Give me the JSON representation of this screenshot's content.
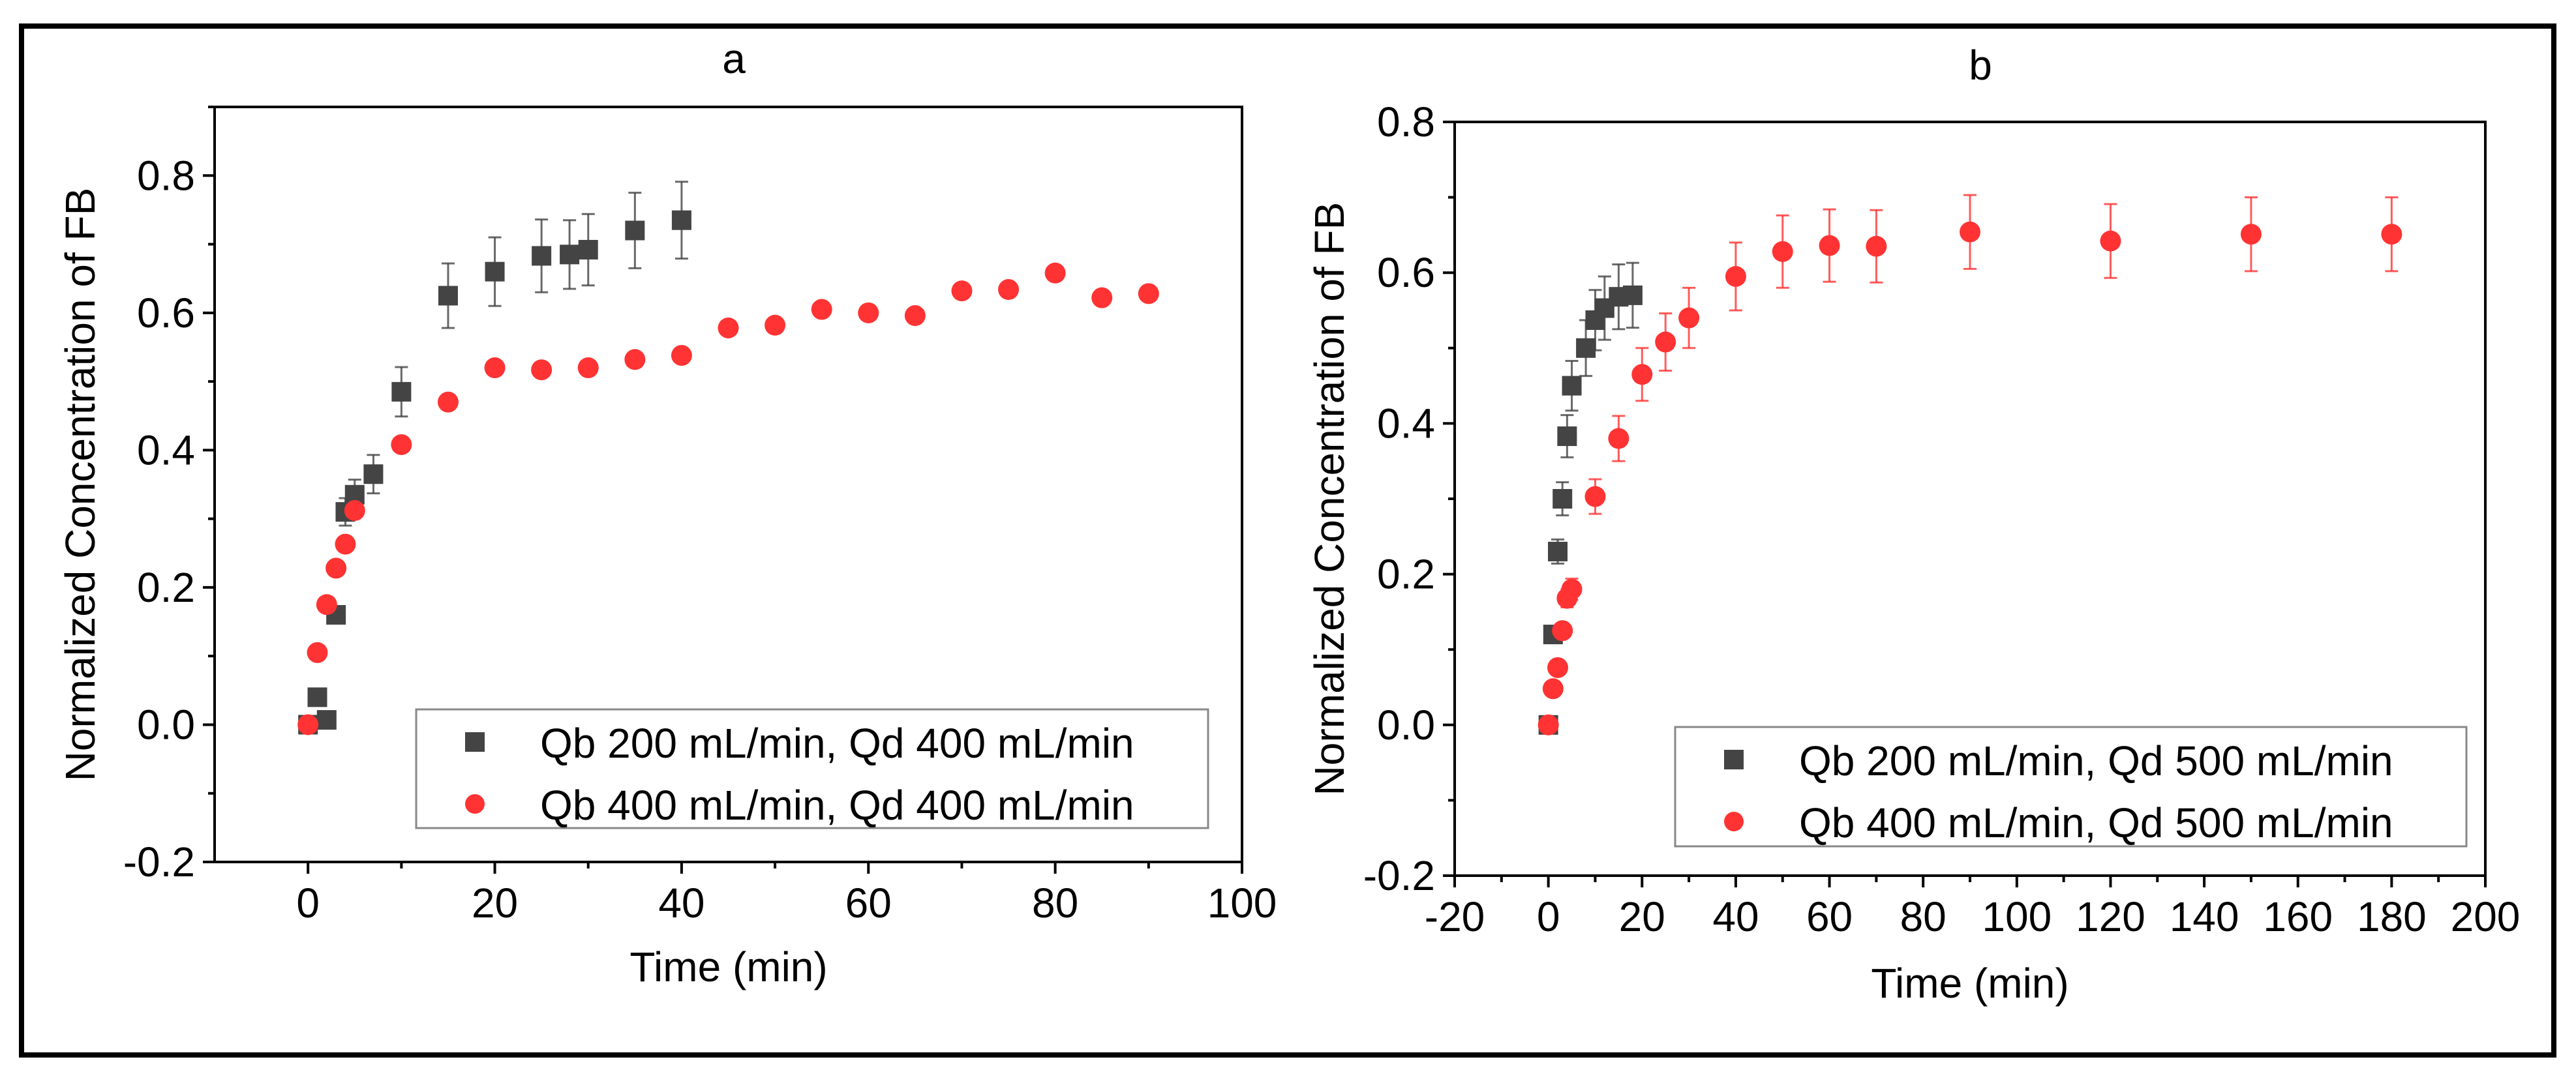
{
  "chart_data": [
    {
      "type": "scatter",
      "title": "a",
      "xlabel": "Time (min)",
      "ylabel": "Normalized Concentration of FB",
      "xlim": [
        -10,
        100
      ],
      "ylim": [
        -0.2,
        0.9
      ],
      "xticks": [
        0,
        20,
        40,
        60,
        80,
        100
      ],
      "xtick_labels": [
        "0",
        "20",
        "40",
        "60",
        "80",
        "100"
      ],
      "yticks": [
        -0.2,
        0.0,
        0.2,
        0.4,
        0.6,
        0.8
      ],
      "ytick_labels": [
        "-0.2",
        "0.0",
        "0.2",
        "0.4",
        "0.6",
        "0.8"
      ],
      "grid": false,
      "legend_position": "bottom-right",
      "series": [
        {
          "name": "Qb 200 mL/min, Qd 400 mL/min",
          "marker": "square",
          "color": "#444444",
          "x": [
            0,
            1,
            2,
            3,
            4,
            5,
            7,
            10,
            15,
            20,
            25,
            28,
            30,
            35,
            40
          ],
          "y": [
            0.0,
            0.04,
            0.007,
            0.16,
            0.31,
            0.335,
            0.365,
            0.485,
            0.625,
            0.66,
            0.683,
            0.685,
            0.692,
            0.72,
            0.735
          ],
          "err": [
            0.005,
            0.008,
            0.006,
            0.01,
            0.02,
            0.022,
            0.028,
            0.036,
            0.047,
            0.05,
            0.053,
            0.05,
            0.052,
            0.055,
            0.056
          ]
        },
        {
          "name": "Qb 400 mL/min, Qd 400 mL/min",
          "marker": "circle",
          "color": "#ff3333",
          "x": [
            0,
            1,
            2,
            3,
            4,
            5,
            10,
            15,
            20,
            25,
            30,
            35,
            40,
            45,
            50,
            55,
            60,
            65,
            70,
            75,
            80,
            85,
            90
          ],
          "y": [
            0.0,
            0.105,
            0.175,
            0.228,
            0.263,
            0.312,
            0.408,
            0.47,
            0.52,
            0.517,
            0.52,
            0.532,
            0.538,
            0.578,
            0.582,
            0.605,
            0.6,
            0.596,
            0.632,
            0.634,
            0.658,
            0.622,
            0.628
          ],
          "err": []
        }
      ]
    },
    {
      "type": "scatter",
      "title": "b",
      "xlabel": "Time (min)",
      "ylabel": "Normalized Concentration of FB",
      "xlim": [
        -20,
        200
      ],
      "ylim": [
        -0.2,
        0.8
      ],
      "xticks": [
        -20,
        0,
        20,
        40,
        60,
        80,
        100,
        120,
        140,
        160,
        180,
        200
      ],
      "xtick_labels": [
        "-20",
        "0",
        "20",
        "40",
        "60",
        "80",
        "100",
        "120",
        "140",
        "160",
        "180",
        "200"
      ],
      "yticks": [
        -0.2,
        0.0,
        0.2,
        0.4,
        0.6,
        0.8
      ],
      "ytick_labels": [
        "-0.2",
        "0.0",
        "0.2",
        "0.4",
        "0.6",
        "0.8"
      ],
      "grid": false,
      "legend_position": "bottom-right",
      "series": [
        {
          "name": "Qb 200 mL/min, Qd 500 mL/min",
          "marker": "square",
          "color": "#444444",
          "x": [
            0,
            1,
            2,
            3,
            4,
            5,
            8,
            10,
            12,
            15,
            18
          ],
          "y": [
            0.0,
            0.12,
            0.23,
            0.3,
            0.383,
            0.45,
            0.5,
            0.537,
            0.553,
            0.568,
            0.57
          ],
          "err": [
            0.003,
            0.006,
            0.016,
            0.022,
            0.028,
            0.033,
            0.037,
            0.04,
            0.042,
            0.043,
            0.043
          ]
        },
        {
          "name": "Qb 400 mL/min, Qd 500 mL/min",
          "marker": "circle",
          "color": "#ff3333",
          "x": [
            0,
            1,
            2,
            3,
            4,
            5,
            10,
            15,
            20,
            25,
            30,
            40,
            50,
            60,
            70,
            90,
            120,
            150,
            180
          ],
          "y": [
            0.0,
            0.048,
            0.076,
            0.125,
            0.168,
            0.18,
            0.303,
            0.38,
            0.465,
            0.508,
            0.54,
            0.595,
            0.628,
            0.636,
            0.635,
            0.654,
            0.642,
            0.651,
            0.651
          ],
          "err": [
            0.003,
            0.004,
            0.005,
            0.008,
            0.012,
            0.014,
            0.023,
            0.03,
            0.035,
            0.038,
            0.04,
            0.045,
            0.048,
            0.048,
            0.048,
            0.049,
            0.049,
            0.049,
            0.049
          ]
        }
      ]
    }
  ]
}
